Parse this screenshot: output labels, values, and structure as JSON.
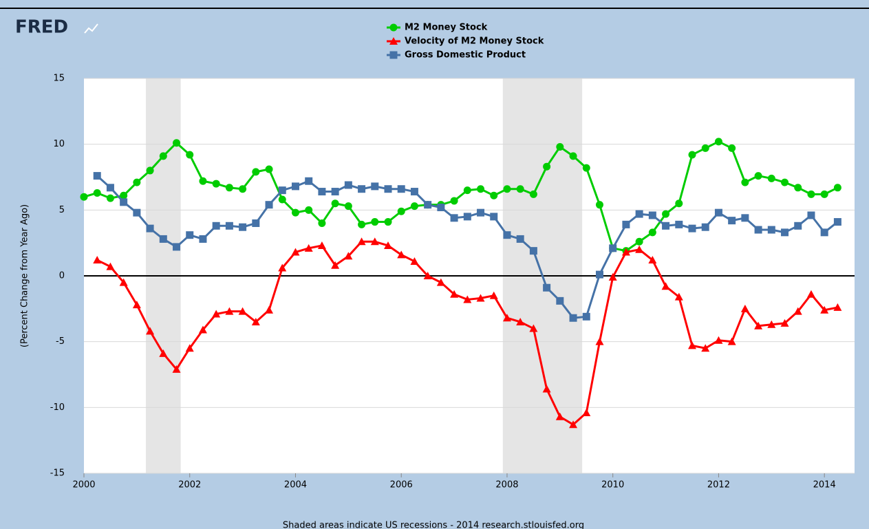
{
  "chart_data": {
    "type": "line",
    "logo": "FRED",
    "y_label": "(Percent Change from Year Ago)",
    "note": "Shaded areas indicate US recessions - 2014 research.stlouisfed.org",
    "x": [
      2000,
      2000.25,
      2000.5,
      2000.75,
      2001,
      2001.25,
      2001.5,
      2001.75,
      2002,
      2002.25,
      2002.5,
      2002.75,
      2003,
      2003.25,
      2003.5,
      2003.75,
      2004,
      2004.25,
      2004.5,
      2004.75,
      2005,
      2005.25,
      2005.5,
      2005.75,
      2006,
      2006.25,
      2006.5,
      2006.75,
      2007,
      2007.25,
      2007.5,
      2007.75,
      2008,
      2008.25,
      2008.5,
      2008.75,
      2009,
      2009.25,
      2009.5,
      2009.75,
      2010,
      2010.25,
      2010.5,
      2010.75,
      2011,
      2011.25,
      2011.5,
      2011.75,
      2012,
      2012.25,
      2012.5,
      2012.75,
      2013,
      2013.25,
      2013.5,
      2013.75,
      2014,
      2014.25
    ],
    "series": [
      {
        "name": "M2 Money Stock",
        "color": "#00cc00",
        "marker": "circle",
        "values": [
          6.0,
          6.3,
          5.9,
          6.1,
          7.1,
          8.0,
          9.1,
          10.1,
          9.2,
          7.2,
          7.0,
          6.7,
          6.6,
          7.9,
          8.1,
          5.8,
          4.8,
          5.0,
          4.0,
          5.5,
          5.3,
          3.9,
          4.1,
          4.1,
          4.9,
          5.3,
          5.4,
          5.4,
          5.7,
          6.5,
          6.6,
          6.1,
          6.6,
          6.6,
          6.2,
          8.3,
          9.8,
          9.1,
          8.2,
          5.4,
          2.1,
          1.9,
          2.6,
          3.3,
          4.7,
          5.5,
          9.2,
          9.7,
          10.2,
          9.7,
          7.1,
          7.6,
          7.4,
          7.1,
          6.7,
          6.2,
          6.2,
          6.7
        ]
      },
      {
        "name": "Velocity of M2 Money Stock",
        "color": "#ff0000",
        "marker": "triangle",
        "values": [
          null,
          1.2,
          0.7,
          -0.5,
          -2.2,
          -4.2,
          -5.9,
          -7.1,
          -5.5,
          -4.1,
          -2.9,
          -2.7,
          -2.7,
          -3.5,
          -2.6,
          0.6,
          1.8,
          2.1,
          2.3,
          0.8,
          1.5,
          2.6,
          2.6,
          2.3,
          1.6,
          1.1,
          0.0,
          -0.5,
          -1.4,
          -1.8,
          -1.7,
          -1.5,
          -3.2,
          -3.5,
          -4.0,
          -8.6,
          -10.7,
          -11.3,
          -10.4,
          -5.0,
          -0.1,
          1.8,
          2.0,
          1.2,
          -0.8,
          -1.6,
          -5.3,
          -5.5,
          -4.9,
          -5.0,
          -2.5,
          -3.8,
          -3.7,
          -3.6,
          -2.7,
          -1.4,
          -2.6,
          -2.4
        ]
      },
      {
        "name": "Gross Domestic Product",
        "color": "#4572a7",
        "marker": "square",
        "values": [
          null,
          7.6,
          6.7,
          5.6,
          4.8,
          3.6,
          2.8,
          2.2,
          3.1,
          2.8,
          3.8,
          3.8,
          3.7,
          4.0,
          5.4,
          6.5,
          6.8,
          7.2,
          6.4,
          6.4,
          6.9,
          6.6,
          6.8,
          6.6,
          6.6,
          6.4,
          5.4,
          5.2,
          4.4,
          4.5,
          4.8,
          4.5,
          3.1,
          2.8,
          1.9,
          -0.9,
          -1.9,
          -3.2,
          -3.1,
          0.1,
          2.1,
          3.9,
          4.7,
          4.6,
          3.8,
          3.9,
          3.6,
          3.7,
          4.8,
          4.2,
          4.4,
          3.5,
          3.5,
          3.3,
          3.8,
          4.6,
          3.3,
          4.1
        ]
      }
    ],
    "recessions": [
      [
        2001.17,
        2001.83
      ],
      [
        2007.92,
        2009.42
      ]
    ],
    "xlim": [
      2000,
      2014.57
    ],
    "xticks": [
      2000,
      2002,
      2004,
      2006,
      2008,
      2010,
      2012,
      2014
    ],
    "ylim": [
      -15,
      15
    ],
    "yticks": [
      -15,
      -10,
      -5,
      0,
      5,
      10,
      15
    ],
    "grid": true
  }
}
